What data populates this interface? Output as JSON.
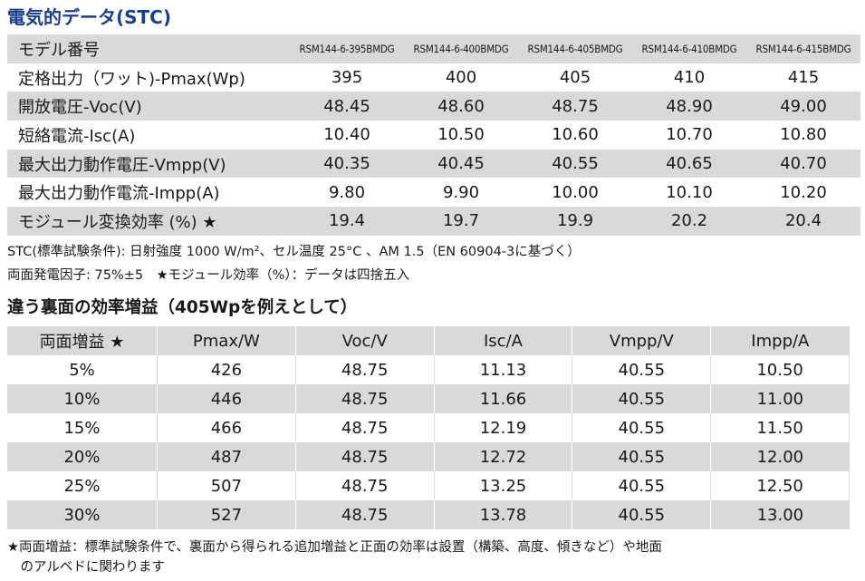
{
  "title": "電気的データ(STC)",
  "spec_table": {
    "header_label": "モデル番号",
    "models": [
      "RSM144-6-395BMDG",
      "RSM144-6-400BMDG",
      "RSM144-6-405BMDG",
      "RSM144-6-410BMDG",
      "RSM144-6-415BMDG"
    ],
    "rows": [
      {
        "label": "定格出力（ワット)-Pmax(Wp)",
        "values": [
          "395",
          "400",
          "405",
          "410",
          "415"
        ]
      },
      {
        "label": "開放電圧-Voc(V)",
        "values": [
          "48.45",
          "48.60",
          "48.75",
          "48.90",
          "49.00"
        ]
      },
      {
        "label": "短絡電流-Isc(A)",
        "values": [
          "10.40",
          "10.50",
          "10.60",
          "10.70",
          "10.80"
        ]
      },
      {
        "label": "最大出力動作電圧-Vmpp(V)",
        "values": [
          "40.35",
          "40.45",
          "40.55",
          "40.65",
          "40.70"
        ]
      },
      {
        "label": "最大出力動作電流-Impp(A)",
        "values": [
          "9.80",
          "9.90",
          "10.00",
          "10.10",
          "10.20"
        ]
      },
      {
        "label": "モジュール変換効率 (%) ★",
        "values": [
          "19.4",
          "19.7",
          "19.9",
          "20.2",
          "20.4"
        ]
      }
    ]
  },
  "notes": {
    "line1": "STC(標準試験条件): 日射強度 1000 W/m²、セル温度 25°C 、AM 1.5（EN 60904-3に基づく）",
    "line2": "両面発電因子: 75%±5　★モジュール効率（%）：データは四捨五入"
  },
  "bifacial_title": "違う裏面の効率増益（405Wpを例えとして）",
  "bifacial_table": {
    "headers": [
      "両面増益 ★",
      "Pmax/W",
      "Voc/V",
      "Isc/A",
      "Vmpp/V",
      "Impp/A"
    ],
    "rows": [
      [
        "5%",
        "426",
        "48.75",
        "11.13",
        "40.55",
        "10.50"
      ],
      [
        "10%",
        "446",
        "48.75",
        "11.66",
        "40.55",
        "11.00"
      ],
      [
        "15%",
        "466",
        "48.75",
        "12.19",
        "40.55",
        "11.50"
      ],
      [
        "20%",
        "487",
        "48.75",
        "12.72",
        "40.55",
        "12.00"
      ],
      [
        "25%",
        "507",
        "48.75",
        "13.25",
        "40.55",
        "12.50"
      ],
      [
        "30%",
        "527",
        "48.75",
        "13.78",
        "40.55",
        "13.00"
      ]
    ]
  },
  "footnote": {
    "line1": "★両面増益：標準試験条件で、裏面から得られる追加増益と正面の効率は設置（構築、高度、傾きなど）や地面",
    "line2": "　のアルベドに関わります"
  }
}
